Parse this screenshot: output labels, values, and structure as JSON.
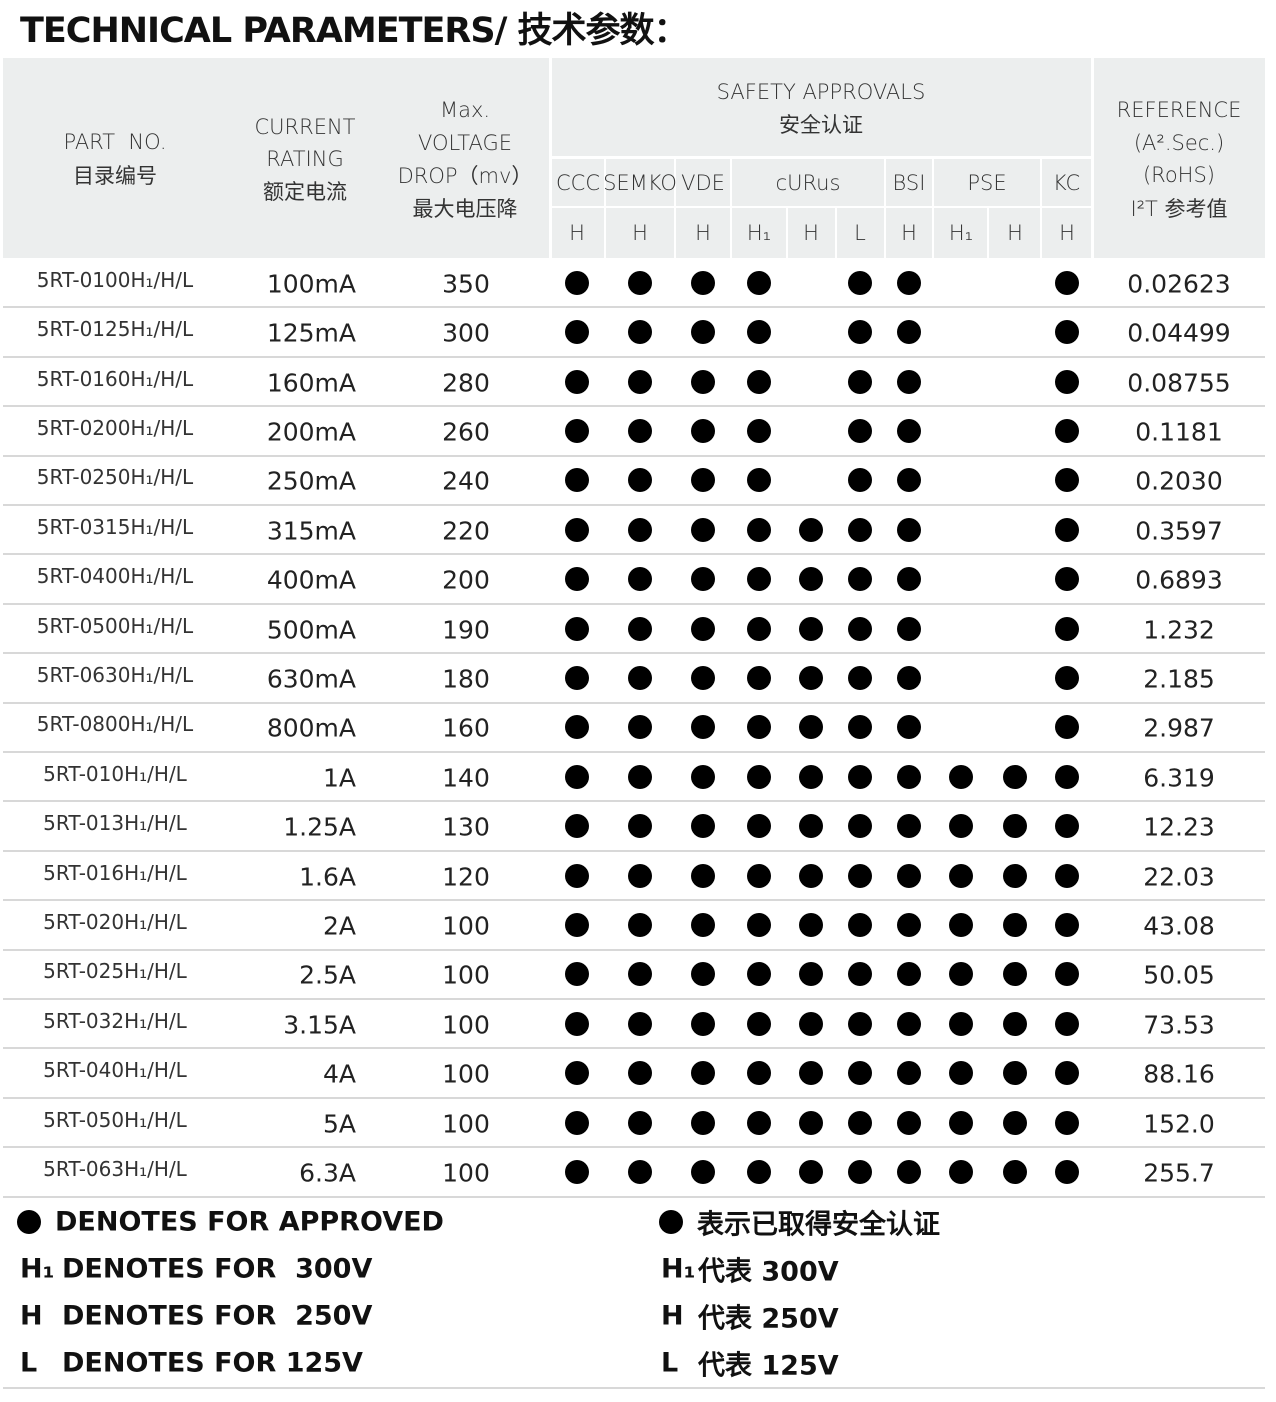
{
  "title": "TECHNICAL PARAMETERS/ 技术参数：",
  "table": {
    "headers": {
      "part_no": [
        "PART  NO.",
        "目录编号"
      ],
      "current": [
        "CURRENT",
        "RATING",
        "额定电流"
      ],
      "voltage": [
        "Max.",
        "VOLTAGE",
        "DROP（mv）",
        "最大电压降"
      ],
      "safety": [
        "SAFETY APPROVALS",
        "安全认证"
      ],
      "reference": [
        "REFERENCE",
        "(A².Sec.)",
        "(RoHS)",
        "I²T 参考值"
      ],
      "agencies": [
        {
          "name": "CCC",
          "ratings": [
            "H"
          ]
        },
        {
          "name": "SEMKO",
          "ratings": [
            "H"
          ]
        },
        {
          "name": "VDE",
          "ratings": [
            "H"
          ]
        },
        {
          "name": "cURus",
          "ratings": [
            "H₁",
            "H",
            "L"
          ]
        },
        {
          "name": "BSI",
          "ratings": [
            "H"
          ]
        },
        {
          "name": "PSE",
          "ratings": [
            "H₁",
            "H"
          ]
        },
        {
          "name": "KC",
          "ratings": [
            "H"
          ]
        }
      ]
    },
    "rows": [
      {
        "part_no": "5RT-0100H₁/H/L",
        "current": "100mA",
        "voltage_drop": "350",
        "approvals": [
          true,
          true,
          true,
          true,
          false,
          true,
          true,
          false,
          false,
          true
        ],
        "reference": "0.02623"
      },
      {
        "part_no": "5RT-0125H₁/H/L",
        "current": "125mA",
        "voltage_drop": "300",
        "approvals": [
          true,
          true,
          true,
          true,
          false,
          true,
          true,
          false,
          false,
          true
        ],
        "reference": "0.04499"
      },
      {
        "part_no": "5RT-0160H₁/H/L",
        "current": "160mA",
        "voltage_drop": "280",
        "approvals": [
          true,
          true,
          true,
          true,
          false,
          true,
          true,
          false,
          false,
          true
        ],
        "reference": "0.08755"
      },
      {
        "part_no": "5RT-0200H₁/H/L",
        "current": "200mA",
        "voltage_drop": "260",
        "approvals": [
          true,
          true,
          true,
          true,
          false,
          true,
          true,
          false,
          false,
          true
        ],
        "reference": "0.1181"
      },
      {
        "part_no": "5RT-0250H₁/H/L",
        "current": "250mA",
        "voltage_drop": "240",
        "approvals": [
          true,
          true,
          true,
          true,
          false,
          true,
          true,
          false,
          false,
          true
        ],
        "reference": "0.2030"
      },
      {
        "part_no": "5RT-0315H₁/H/L",
        "current": "315mA",
        "voltage_drop": "220",
        "approvals": [
          true,
          true,
          true,
          true,
          true,
          true,
          true,
          false,
          false,
          true
        ],
        "reference": "0.3597"
      },
      {
        "part_no": "5RT-0400H₁/H/L",
        "current": "400mA",
        "voltage_drop": "200",
        "approvals": [
          true,
          true,
          true,
          true,
          true,
          true,
          true,
          false,
          false,
          true
        ],
        "reference": "0.6893"
      },
      {
        "part_no": "5RT-0500H₁/H/L",
        "current": "500mA",
        "voltage_drop": "190",
        "approvals": [
          true,
          true,
          true,
          true,
          true,
          true,
          true,
          false,
          false,
          true
        ],
        "reference": "1.232"
      },
      {
        "part_no": "5RT-0630H₁/H/L",
        "current": "630mA",
        "voltage_drop": "180",
        "approvals": [
          true,
          true,
          true,
          true,
          true,
          true,
          true,
          false,
          false,
          true
        ],
        "reference": "2.185"
      },
      {
        "part_no": "5RT-0800H₁/H/L",
        "current": "800mA",
        "voltage_drop": "160",
        "approvals": [
          true,
          true,
          true,
          true,
          true,
          true,
          true,
          false,
          false,
          true
        ],
        "reference": "2.987"
      },
      {
        "part_no": "5RT-010H₁/H/L",
        "current": "1A",
        "voltage_drop": "140",
        "approvals": [
          true,
          true,
          true,
          true,
          true,
          true,
          true,
          true,
          true,
          true
        ],
        "reference": "6.319"
      },
      {
        "part_no": "5RT-013H₁/H/L",
        "current": "1.25A",
        "voltage_drop": "130",
        "approvals": [
          true,
          true,
          true,
          true,
          true,
          true,
          true,
          true,
          true,
          true
        ],
        "reference": "12.23"
      },
      {
        "part_no": "5RT-016H₁/H/L",
        "current": "1.6A",
        "voltage_drop": "120",
        "approvals": [
          true,
          true,
          true,
          true,
          true,
          true,
          true,
          true,
          true,
          true
        ],
        "reference": "22.03"
      },
      {
        "part_no": "5RT-020H₁/H/L",
        "current": "2A",
        "voltage_drop": "100",
        "approvals": [
          true,
          true,
          true,
          true,
          true,
          true,
          true,
          true,
          true,
          true
        ],
        "reference": "43.08"
      },
      {
        "part_no": "5RT-025H₁/H/L",
        "current": "2.5A",
        "voltage_drop": "100",
        "approvals": [
          true,
          true,
          true,
          true,
          true,
          true,
          true,
          true,
          true,
          true
        ],
        "reference": "50.05"
      },
      {
        "part_no": "5RT-032H₁/H/L",
        "current": "3.15A",
        "voltage_drop": "100",
        "approvals": [
          true,
          true,
          true,
          true,
          true,
          true,
          true,
          true,
          true,
          true
        ],
        "reference": "73.53"
      },
      {
        "part_no": "5RT-040H₁/H/L",
        "current": "4A",
        "voltage_drop": "100",
        "approvals": [
          true,
          true,
          true,
          true,
          true,
          true,
          true,
          true,
          true,
          true
        ],
        "reference": "88.16"
      },
      {
        "part_no": "5RT-050H₁/H/L",
        "current": "5A",
        "voltage_drop": "100",
        "approvals": [
          true,
          true,
          true,
          true,
          true,
          true,
          true,
          true,
          true,
          true
        ],
        "reference": "152.0"
      },
      {
        "part_no": "5RT-063H₁/H/L",
        "current": "6.3A",
        "voltage_drop": "100",
        "approvals": [
          true,
          true,
          true,
          true,
          true,
          true,
          true,
          true,
          true,
          true
        ],
        "reference": "255.7"
      }
    ]
  },
  "legend": {
    "symbols": [
      "H₁",
      "H",
      "L"
    ],
    "en": [
      "DENOTES FOR APPROVED",
      "DENOTES FOR  300V",
      "DENOTES FOR  250V",
      "DENOTES FOR 125V"
    ],
    "zh": [
      "表示已取得安全认证",
      "代表 300V",
      "代表 250V",
      "代表 125V"
    ]
  }
}
